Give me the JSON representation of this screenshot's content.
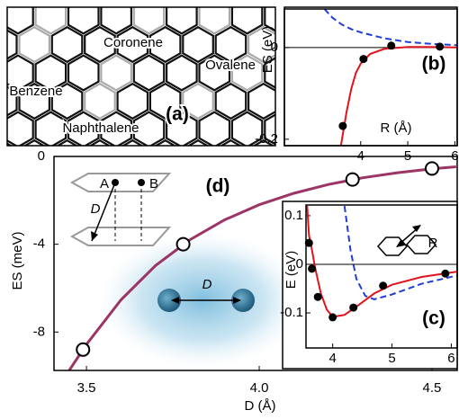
{
  "diagram": {
    "label": "(a)",
    "molecules": [
      "Coronene",
      "Benzene",
      "Ovalene",
      "Naphthalene"
    ]
  },
  "chart_data": [
    {
      "type": "line",
      "label": "(b)",
      "xlabel": "R (Å)",
      "ylabel": "ES (eV)",
      "xlim": [
        2.38,
        6.05
      ],
      "ylim": [
        -0.214,
        0.084
      ],
      "xticks": [
        4,
        5,
        6
      ],
      "yticks": [
        0,
        -0.2
      ],
      "zero_line": true,
      "series": [
        {
          "style": "line",
          "color": "#e0141e",
          "x": [
            3.58,
            3.7,
            3.8,
            3.9,
            4.0,
            4.2,
            4.5,
            5.0,
            5.5,
            6.05
          ],
          "values": [
            -0.214,
            -0.14,
            -0.09,
            -0.055,
            -0.035,
            -0.014,
            -0.003,
            0.001,
            0.001,
            0.0
          ]
        },
        {
          "style": "dashed",
          "color": "#1f3fd6",
          "x": [
            3.23,
            3.4,
            3.6,
            3.8,
            4.0,
            4.5,
            5.0,
            5.5,
            6.05
          ],
          "values": [
            0.084,
            0.065,
            0.05,
            0.04,
            0.033,
            0.02,
            0.012,
            0.008,
            0.005
          ]
        },
        {
          "style": "markers",
          "color": "#000000",
          "x": [
            3.62,
            4.06,
            4.65,
            5.68
          ],
          "values": [
            -0.171,
            -0.025,
            0.004,
            0.002
          ]
        }
      ]
    },
    {
      "type": "line",
      "label": "(c)",
      "xlabel": "R",
      "ylabel": "E (eV)",
      "xlim": [
        3.55,
        6.1
      ],
      "ylim": [
        -0.172,
        0.122
      ],
      "xticks": [
        4,
        5,
        6
      ],
      "yticks": [
        0.1,
        0,
        -0.1
      ],
      "zero_line": true,
      "series": [
        {
          "style": "line",
          "color": "#e0141e",
          "x": [
            3.57,
            3.6,
            3.65,
            3.7,
            3.8,
            3.9,
            4.0,
            4.2,
            4.4,
            4.7,
            5.0,
            5.5,
            6.1
          ],
          "values": [
            0.12,
            0.06,
            0.03,
            -0.005,
            -0.06,
            -0.093,
            -0.108,
            -0.104,
            -0.087,
            -0.06,
            -0.042,
            -0.026,
            -0.015
          ]
        },
        {
          "style": "dashed",
          "color": "#1f3fd6",
          "x": [
            4.2,
            4.3,
            4.4,
            4.55,
            4.7,
            5.0,
            5.5,
            6.1
          ],
          "values": [
            0.12,
            0.03,
            -0.03,
            -0.065,
            -0.072,
            -0.062,
            -0.04,
            -0.023
          ]
        },
        {
          "style": "markers",
          "color": "#000000",
          "x": [
            3.6,
            3.65,
            3.75,
            4.0,
            4.35,
            4.85,
            5.9
          ],
          "values": [
            0.044,
            -0.009,
            -0.067,
            -0.109,
            -0.089,
            -0.044,
            -0.019
          ]
        }
      ]
    },
    {
      "type": "line",
      "label": "(d)",
      "xlabel": "D (Å)",
      "ylabel": "ES (meV)",
      "annotations": [
        "A",
        "B",
        "D",
        "D"
      ],
      "xlim": [
        3.406,
        4.573
      ],
      "ylim": [
        -9.75,
        0
      ],
      "xticks": [
        3.5,
        {
          "value": 4,
          "label": "4.0"
        },
        4.5
      ],
      "yticks": [
        0,
        -4,
        -8
      ],
      "zero_line": false,
      "series": [
        {
          "style": "line",
          "color": "#9c3566",
          "x": [
            3.45,
            3.5,
            3.6,
            3.7,
            3.8,
            3.9,
            4.0,
            4.1,
            4.2,
            4.3,
            4.4,
            4.5,
            4.57
          ],
          "values": [
            -9.75,
            -8.56,
            -6.53,
            -4.97,
            -3.79,
            -2.89,
            -2.2,
            -1.68,
            -1.28,
            -0.97,
            -0.74,
            -0.56,
            -0.47
          ]
        },
        {
          "style": "markers",
          "color": "#ffffff",
          "x": [
            3.49,
            3.78,
            4.27,
            4.5
          ],
          "values": [
            -8.8,
            -4.0,
            -1.05,
            -0.55
          ]
        }
      ]
    }
  ]
}
